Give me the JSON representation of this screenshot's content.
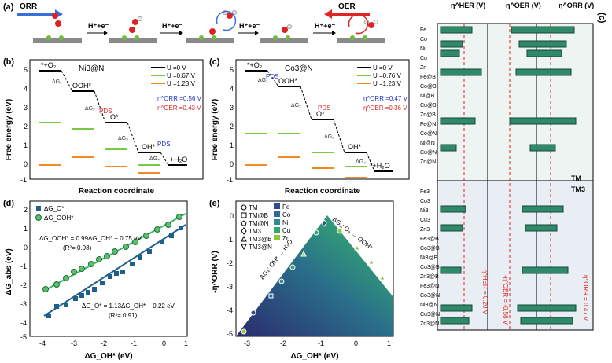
{
  "panel_a": {
    "label": "(a)",
    "orr": "ORR",
    "oer": "OER",
    "step": "H⁺+e⁻",
    "arrow_colors": {
      "orr": "#3a6fd8",
      "oer": "#e02525"
    }
  },
  "panel_b": {
    "label": "(b)",
    "title": "Ni3@N",
    "ylabel": "Free energy (eV)",
    "xlabel": "Reaction coordinate",
    "legend": [
      "U =0 V",
      "U =0.67 V",
      "U =1.23 V"
    ],
    "eta_orr": "η^ORR =0.56 V",
    "eta_oer": "η^OER =0.43 V",
    "pds1": "PDS",
    "pds2": "PDS",
    "labels": [
      "*+O₂",
      "OOH*",
      "O*",
      "OH*",
      "+H₂O"
    ],
    "dg": [
      "ΔG₁",
      "ΔG₂",
      "ΔG₃",
      "ΔG₄"
    ]
  },
  "panel_c": {
    "label": "(c)",
    "title": "Co3@N",
    "ylabel": "Free energy (eV)",
    "xlabel": "Reaction coordinate",
    "legend": [
      "U =0 V",
      "U =0.76 V",
      "U =1.23 V"
    ],
    "eta_orr": "η^ORR =0.47 V",
    "eta_oer": "η^OER =0.36 V",
    "pds1": "PDS",
    "pds2": "PDS",
    "labels": [
      "*+O₂",
      "OOH*",
      "O*",
      "OH*",
      "*+H₂O"
    ],
    "dg": [
      "ΔG₁",
      "ΔG₂",
      "ΔG₃",
      "ΔG₄"
    ]
  },
  "panel_d": {
    "label": "(d)",
    "ylabel": "ΔG_abs (eV)",
    "xlabel": "ΔG_OH* (eV)",
    "legend": [
      "ΔG_O*",
      "ΔG_OOH*"
    ],
    "eq1": "ΔG_OOH* = 0.99ΔG_OH* + 0.75 eV",
    "r1": "(R²= 0.98)",
    "eq2": "ΔG_O* = 1.13ΔG_OH* + 0.22 eV",
    "r2": "(R²= 0.91)"
  },
  "panel_e": {
    "label": "(e)",
    "ylabel": "-η^ORR (V)",
    "xlabel": "ΔG_OH* (eV)",
    "legend_shapes": [
      "TM",
      "TM@B",
      "TM@N",
      "TM3",
      "TM3@B",
      "TM3@N"
    ],
    "legend_colors": [
      {
        "name": "Fe",
        "color": "#2e4a8a"
      },
      {
        "name": "Co",
        "color": "#2d6aa0"
      },
      {
        "name": "Ni",
        "color": "#2f8a8a"
      },
      {
        "name": "Cu",
        "color": "#2fa86a"
      },
      {
        "name": "Zn",
        "color": "#8ac83a"
      }
    ],
    "line_left": "ΔG₄: OH* → H₂O",
    "line_right": "ΔG₁: O₂ → OOH*"
  },
  "panel_f": {
    "label": "(c)",
    "axis1": "-η^HER (V)",
    "axis2": "-η^OER (V)",
    "axis3": "η^ORR (V)",
    "rows_tm": [
      "Fe",
      "Co",
      "Ni",
      "Cu",
      "Zn",
      "Fe@B",
      "Co@B",
      "Ni@B",
      "Cu@B",
      "Zn@B",
      "Fe@N",
      "Co@N",
      "Ni@N",
      "Cu@N",
      "Zn@N"
    ],
    "rows_tm3": [
      "Fe3",
      "Co3",
      "Ni3",
      "Cu3",
      "Zn3",
      "Fe3@B",
      "Co3@B",
      "Ni3@B",
      "Cu3@B",
      "Zn3@B",
      "Fe3@N",
      "Co3@N",
      "Ni3@N",
      "Cu3@N",
      "Zn3@N"
    ],
    "sec_tm": "TM",
    "sec_tm3": "TM3",
    "ann_her": "-η^HER = 0.20 V",
    "ann_oer": "-η^OER = -0.56 V",
    "ann_orr": "η^ORR = 0.47 V"
  }
}
